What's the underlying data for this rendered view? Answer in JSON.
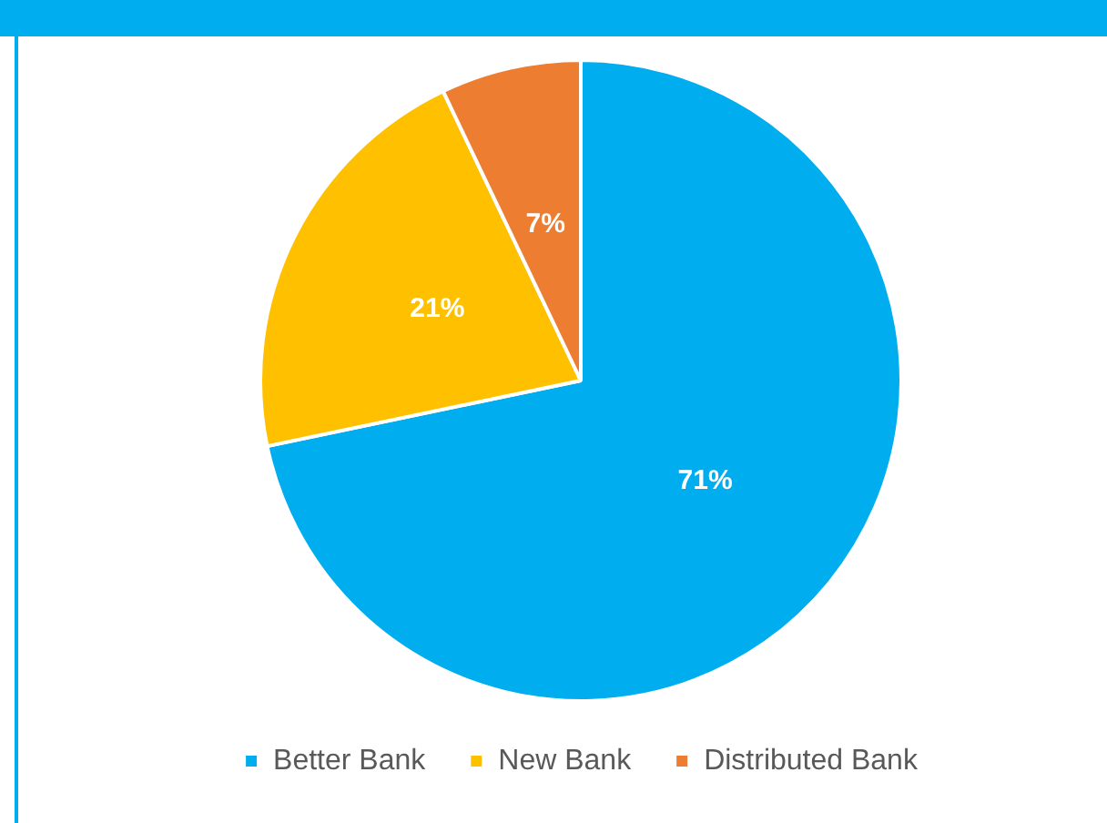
{
  "chart_data": {
    "type": "pie",
    "categories": [
      "Better Bank",
      "New Bank",
      "Distributed Bank"
    ],
    "values": [
      71,
      21,
      7
    ],
    "colors": [
      "#00aeef",
      "#ffc000",
      "#ed7d31"
    ],
    "value_labels": [
      "71%",
      "21%",
      "7%"
    ],
    "legend": "bottom"
  }
}
